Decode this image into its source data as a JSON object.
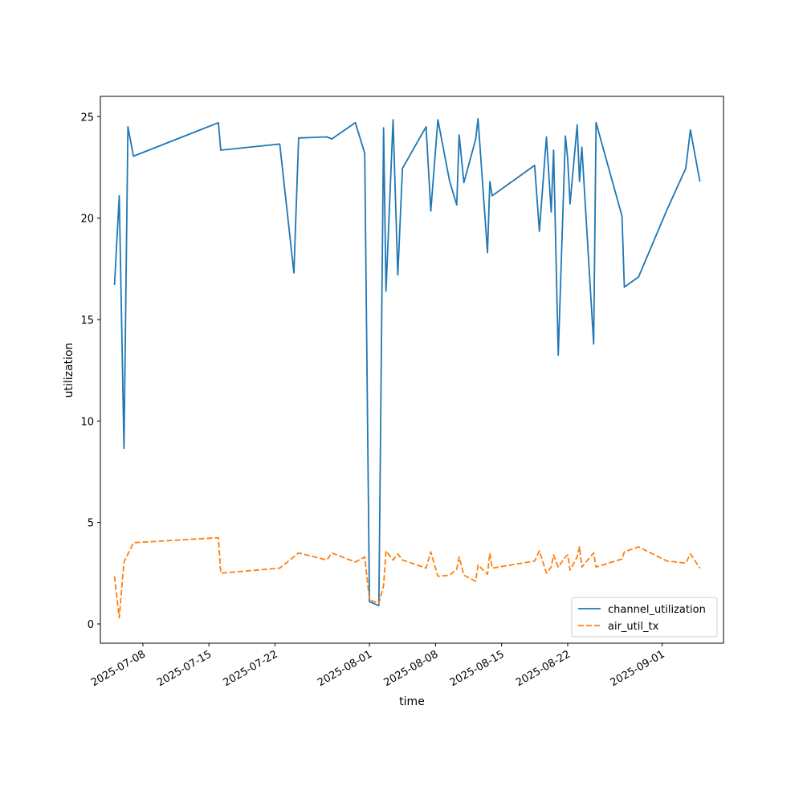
{
  "chart_data": {
    "type": "line",
    "title": "",
    "xlabel": "time",
    "ylabel": "utilization",
    "ylim": [
      -0.95,
      26.0
    ],
    "xlim": [
      "2025-07-03T12:00",
      "2025-09-07T12:00"
    ],
    "yticks": [
      0,
      5,
      10,
      15,
      20,
      25
    ],
    "xticks": [
      "2025-07-08",
      "2025-07-15",
      "2025-07-22",
      "2025-08-01",
      "2025-08-08",
      "2025-08-15",
      "2025-08-22",
      "2025-09-01"
    ],
    "grid": false,
    "legend_position": "lower-right",
    "colors": {
      "channel_utilization": "#1f77b4",
      "air_util_tx": "#ff7f0e"
    },
    "series": [
      {
        "name": "channel_utilization",
        "style": "solid",
        "points": [
          [
            "2025-07-05T00:00",
            16.7
          ],
          [
            "2025-07-05T12:00",
            21.1
          ],
          [
            "2025-07-06T00:00",
            8.65
          ],
          [
            "2025-07-06T10:00",
            24.5
          ],
          [
            "2025-07-07T00:00",
            23.05
          ],
          [
            "2025-07-16T00:00",
            24.7
          ],
          [
            "2025-07-16T06:00",
            23.35
          ],
          [
            "2025-07-22T12:00",
            23.65
          ],
          [
            "2025-07-24T00:00",
            17.3
          ],
          [
            "2025-07-24T12:00",
            23.95
          ],
          [
            "2025-07-27T12:00",
            24.0
          ],
          [
            "2025-07-28T00:00",
            23.9
          ],
          [
            "2025-07-30T12:00",
            24.7
          ],
          [
            "2025-07-31T12:00",
            23.2
          ],
          [
            "2025-08-01T00:00",
            1.1
          ],
          [
            "2025-08-02T00:00",
            0.9
          ],
          [
            "2025-08-02T12:00",
            24.45
          ],
          [
            "2025-08-02T18:00",
            16.4
          ],
          [
            "2025-08-03T12:00",
            24.85
          ],
          [
            "2025-08-04T00:00",
            17.2
          ],
          [
            "2025-08-04T12:00",
            22.45
          ],
          [
            "2025-08-07T00:00",
            24.5
          ],
          [
            "2025-08-07T12:00",
            20.35
          ],
          [
            "2025-08-08T06:00",
            24.85
          ],
          [
            "2025-08-09T12:00",
            21.8
          ],
          [
            "2025-08-10T06:00",
            20.65
          ],
          [
            "2025-08-10T12:00",
            24.1
          ],
          [
            "2025-08-11T00:00",
            21.75
          ],
          [
            "2025-08-12T06:00",
            23.9
          ],
          [
            "2025-08-12T12:00",
            24.9
          ],
          [
            "2025-08-13T12:00",
            18.3
          ],
          [
            "2025-08-13T18:00",
            21.8
          ],
          [
            "2025-08-14T00:00",
            21.1
          ],
          [
            "2025-08-18T12:00",
            22.6
          ],
          [
            "2025-08-19T00:00",
            19.35
          ],
          [
            "2025-08-19T18:00",
            24.0
          ],
          [
            "2025-08-20T06:00",
            20.3
          ],
          [
            "2025-08-20T12:00",
            23.35
          ],
          [
            "2025-08-21T00:00",
            13.25
          ],
          [
            "2025-08-21T18:00",
            24.05
          ],
          [
            "2025-08-22T00:00",
            22.9
          ],
          [
            "2025-08-22T06:00",
            20.7
          ],
          [
            "2025-08-23T00:00",
            24.6
          ],
          [
            "2025-08-23T06:00",
            21.8
          ],
          [
            "2025-08-23T12:00",
            23.5
          ],
          [
            "2025-08-24T18:00",
            13.8
          ],
          [
            "2025-08-25T00:00",
            24.7
          ],
          [
            "2025-08-27T18:00",
            20.1
          ],
          [
            "2025-08-28T00:00",
            16.6
          ],
          [
            "2025-08-29T12:00",
            17.1
          ],
          [
            "2025-09-01T12:00",
            20.4
          ],
          [
            "2025-09-03T12:00",
            22.45
          ],
          [
            "2025-09-04T00:00",
            24.35
          ],
          [
            "2025-09-05T00:00",
            21.8
          ]
        ]
      },
      {
        "name": "air_util_tx",
        "style": "dashed",
        "points": [
          [
            "2025-07-05T00:00",
            2.35
          ],
          [
            "2025-07-05T12:00",
            0.3
          ],
          [
            "2025-07-06T00:00",
            3.05
          ],
          [
            "2025-07-07T00:00",
            4.0
          ],
          [
            "2025-07-16T00:00",
            4.25
          ],
          [
            "2025-07-16T06:00",
            2.5
          ],
          [
            "2025-07-22T12:00",
            2.75
          ],
          [
            "2025-07-24T12:00",
            3.5
          ],
          [
            "2025-07-27T12:00",
            3.15
          ],
          [
            "2025-07-28T00:00",
            3.5
          ],
          [
            "2025-07-30T12:00",
            3.05
          ],
          [
            "2025-07-31T12:00",
            3.3
          ],
          [
            "2025-08-01T00:00",
            1.2
          ],
          [
            "2025-08-02T00:00",
            1.0
          ],
          [
            "2025-08-02T12:00",
            1.9
          ],
          [
            "2025-08-02T18:00",
            3.6
          ],
          [
            "2025-08-03T12:00",
            3.15
          ],
          [
            "2025-08-04T00:00",
            3.45
          ],
          [
            "2025-08-04T12:00",
            3.15
          ],
          [
            "2025-08-07T00:00",
            2.75
          ],
          [
            "2025-08-07T12:00",
            3.55
          ],
          [
            "2025-08-08T06:00",
            2.35
          ],
          [
            "2025-08-09T12:00",
            2.4
          ],
          [
            "2025-08-10T06:00",
            2.7
          ],
          [
            "2025-08-10T12:00",
            3.3
          ],
          [
            "2025-08-11T00:00",
            2.4
          ],
          [
            "2025-08-12T06:00",
            2.1
          ],
          [
            "2025-08-12T12:00",
            2.9
          ],
          [
            "2025-08-13T12:00",
            2.45
          ],
          [
            "2025-08-13T18:00",
            3.5
          ],
          [
            "2025-08-14T00:00",
            2.75
          ],
          [
            "2025-08-18T12:00",
            3.1
          ],
          [
            "2025-08-19T00:00",
            3.6
          ],
          [
            "2025-08-19T18:00",
            2.5
          ],
          [
            "2025-08-20T06:00",
            2.8
          ],
          [
            "2025-08-20T12:00",
            3.4
          ],
          [
            "2025-08-21T00:00",
            2.8
          ],
          [
            "2025-08-21T18:00",
            3.3
          ],
          [
            "2025-08-22T00:00",
            3.4
          ],
          [
            "2025-08-22T06:00",
            2.65
          ],
          [
            "2025-08-23T00:00",
            3.3
          ],
          [
            "2025-08-23T06:00",
            3.8
          ],
          [
            "2025-08-23T12:00",
            2.8
          ],
          [
            "2025-08-24T18:00",
            3.5
          ],
          [
            "2025-08-25T00:00",
            2.8
          ],
          [
            "2025-08-27T18:00",
            3.2
          ],
          [
            "2025-08-28T00:00",
            3.55
          ],
          [
            "2025-08-29T12:00",
            3.8
          ],
          [
            "2025-09-01T12:00",
            3.1
          ],
          [
            "2025-09-03T12:00",
            3.0
          ],
          [
            "2025-09-04T00:00",
            3.45
          ],
          [
            "2025-09-05T00:00",
            2.75
          ]
        ]
      }
    ]
  }
}
